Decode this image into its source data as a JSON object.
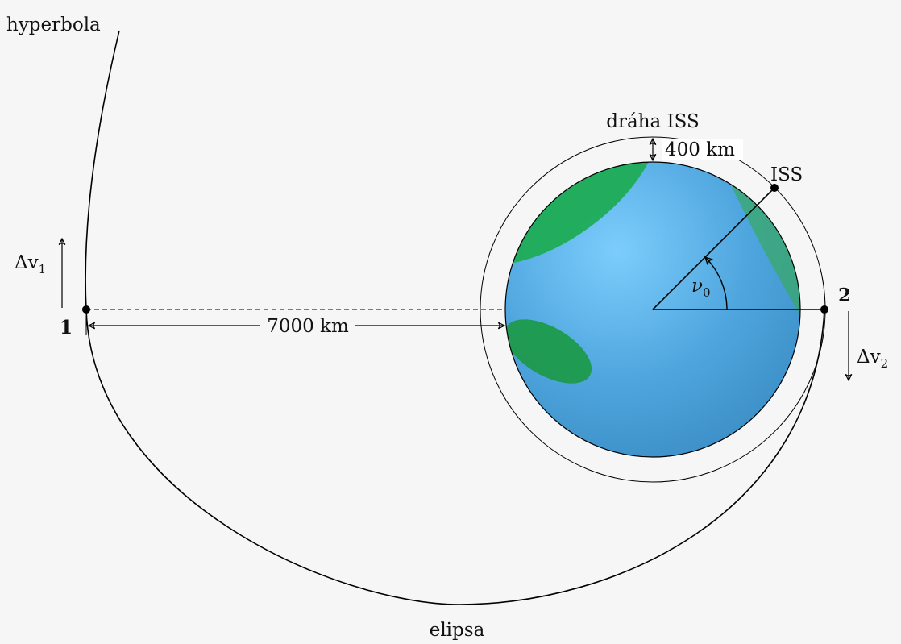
{
  "labels": {
    "hyperbola": "hyperbola",
    "ellipse": "elipsa",
    "iss_orbit": "dráha ISS",
    "iss": "ISS",
    "altitude": "400 km",
    "distance": "7000 km",
    "point1": "1",
    "point2": "2",
    "angle_symbol": "ν",
    "angle_sub": "0",
    "dv1_symbol": "Δv",
    "dv1_sub": "1",
    "dv2_symbol": "Δv",
    "dv2_sub": "2"
  },
  "colors": {
    "background": "#f6f6f6",
    "ocean_light": "#7ccdfc",
    "ocean_dark": "#3d8fc8",
    "land": "#1fac55",
    "land_dark": "#1d9a4c",
    "line": "#000000"
  }
}
